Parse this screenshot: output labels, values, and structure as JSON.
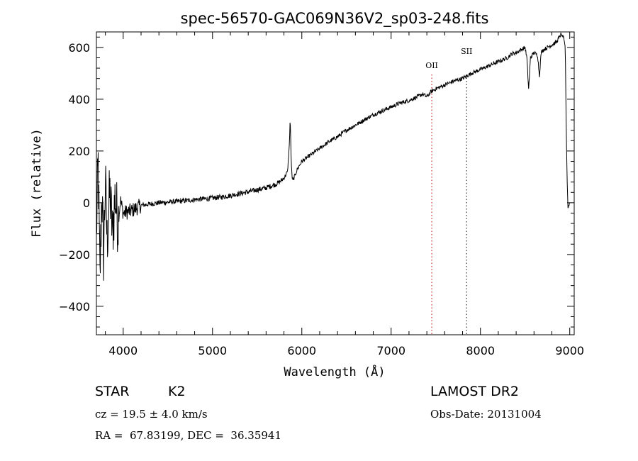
{
  "chart_data": {
    "type": "line",
    "title": "spec-56570-GAC069N36V2_sp03-248.fits",
    "xlabel": "Wavelength (Å)",
    "ylabel": "Flux (relative)",
    "xlim": [
      3700,
      9050
    ],
    "ylim": [
      -510,
      660
    ],
    "x_ticks": [
      4000,
      5000,
      6000,
      7000,
      8000,
      9000
    ],
    "y_ticks": [
      -400,
      -200,
      0,
      200,
      400,
      600
    ],
    "grid": false,
    "series": [
      {
        "x": [
          3700,
          3720,
          3740,
          3760,
          3780,
          3800,
          3820,
          3850,
          3880,
          3910,
          3940,
          3970,
          4000,
          4050,
          4100,
          4150,
          4200,
          4300,
          4400,
          4500,
          4600,
          4700,
          4800,
          4900,
          5000,
          5100,
          5200,
          5300,
          5400,
          5500,
          5600,
          5700,
          5750,
          5800,
          5840,
          5860,
          5870,
          5880,
          5890,
          5900,
          5950,
          6000,
          6100,
          6200,
          6300,
          6400,
          6500,
          6600,
          6700,
          6800,
          6900,
          7000,
          7100,
          7200,
          7300,
          7350,
          7400,
          7450,
          7500,
          7600,
          7700,
          7800,
          7850,
          7900,
          8000,
          8100,
          8200,
          8300,
          8350,
          8400,
          8450,
          8500,
          8520,
          8540,
          8560,
          8580,
          8600,
          8640,
          8660,
          8680,
          8700,
          8750,
          8800,
          8850,
          8900,
          8930,
          8950,
          8960,
          8970,
          8980,
          8990,
          9000
        ],
        "y": [
          -120,
          150,
          -300,
          50,
          -200,
          80,
          -150,
          40,
          -120,
          30,
          -80,
          10,
          -40,
          -35,
          -30,
          -20,
          -10,
          -5,
          0,
          2,
          5,
          8,
          12,
          15,
          18,
          22,
          28,
          35,
          42,
          50,
          58,
          70,
          80,
          95,
          120,
          220,
          330,
          180,
          100,
          85,
          130,
          160,
          185,
          210,
          235,
          255,
          280,
          300,
          320,
          340,
          355,
          370,
          385,
          395,
          410,
          420,
          410,
          430,
          440,
          455,
          470,
          480,
          490,
          500,
          515,
          530,
          545,
          560,
          575,
          580,
          590,
          600,
          560,
          440,
          560,
          570,
          580,
          570,
          490,
          580,
          590,
          600,
          610,
          620,
          650,
          640,
          600,
          300,
          100,
          -20,
          -10,
          0
        ]
      }
    ],
    "annotations": [
      {
        "label": "OII",
        "x": 7455
      },
      {
        "label": "SII",
        "x": 7845
      }
    ]
  },
  "info": {
    "object_type": "STAR",
    "subclass": "K2",
    "survey": "LAMOST DR2",
    "redshift": "cz = 19.5 ± 4.0 km/s",
    "obs_date": "Obs-Date: 20131004",
    "coords": "RA =  67.83199, DEC =  36.35941"
  },
  "colors": {
    "axis": "#000000",
    "line": "#000000",
    "OII_marker": "#cc3333",
    "SII_marker": "#333333"
  }
}
